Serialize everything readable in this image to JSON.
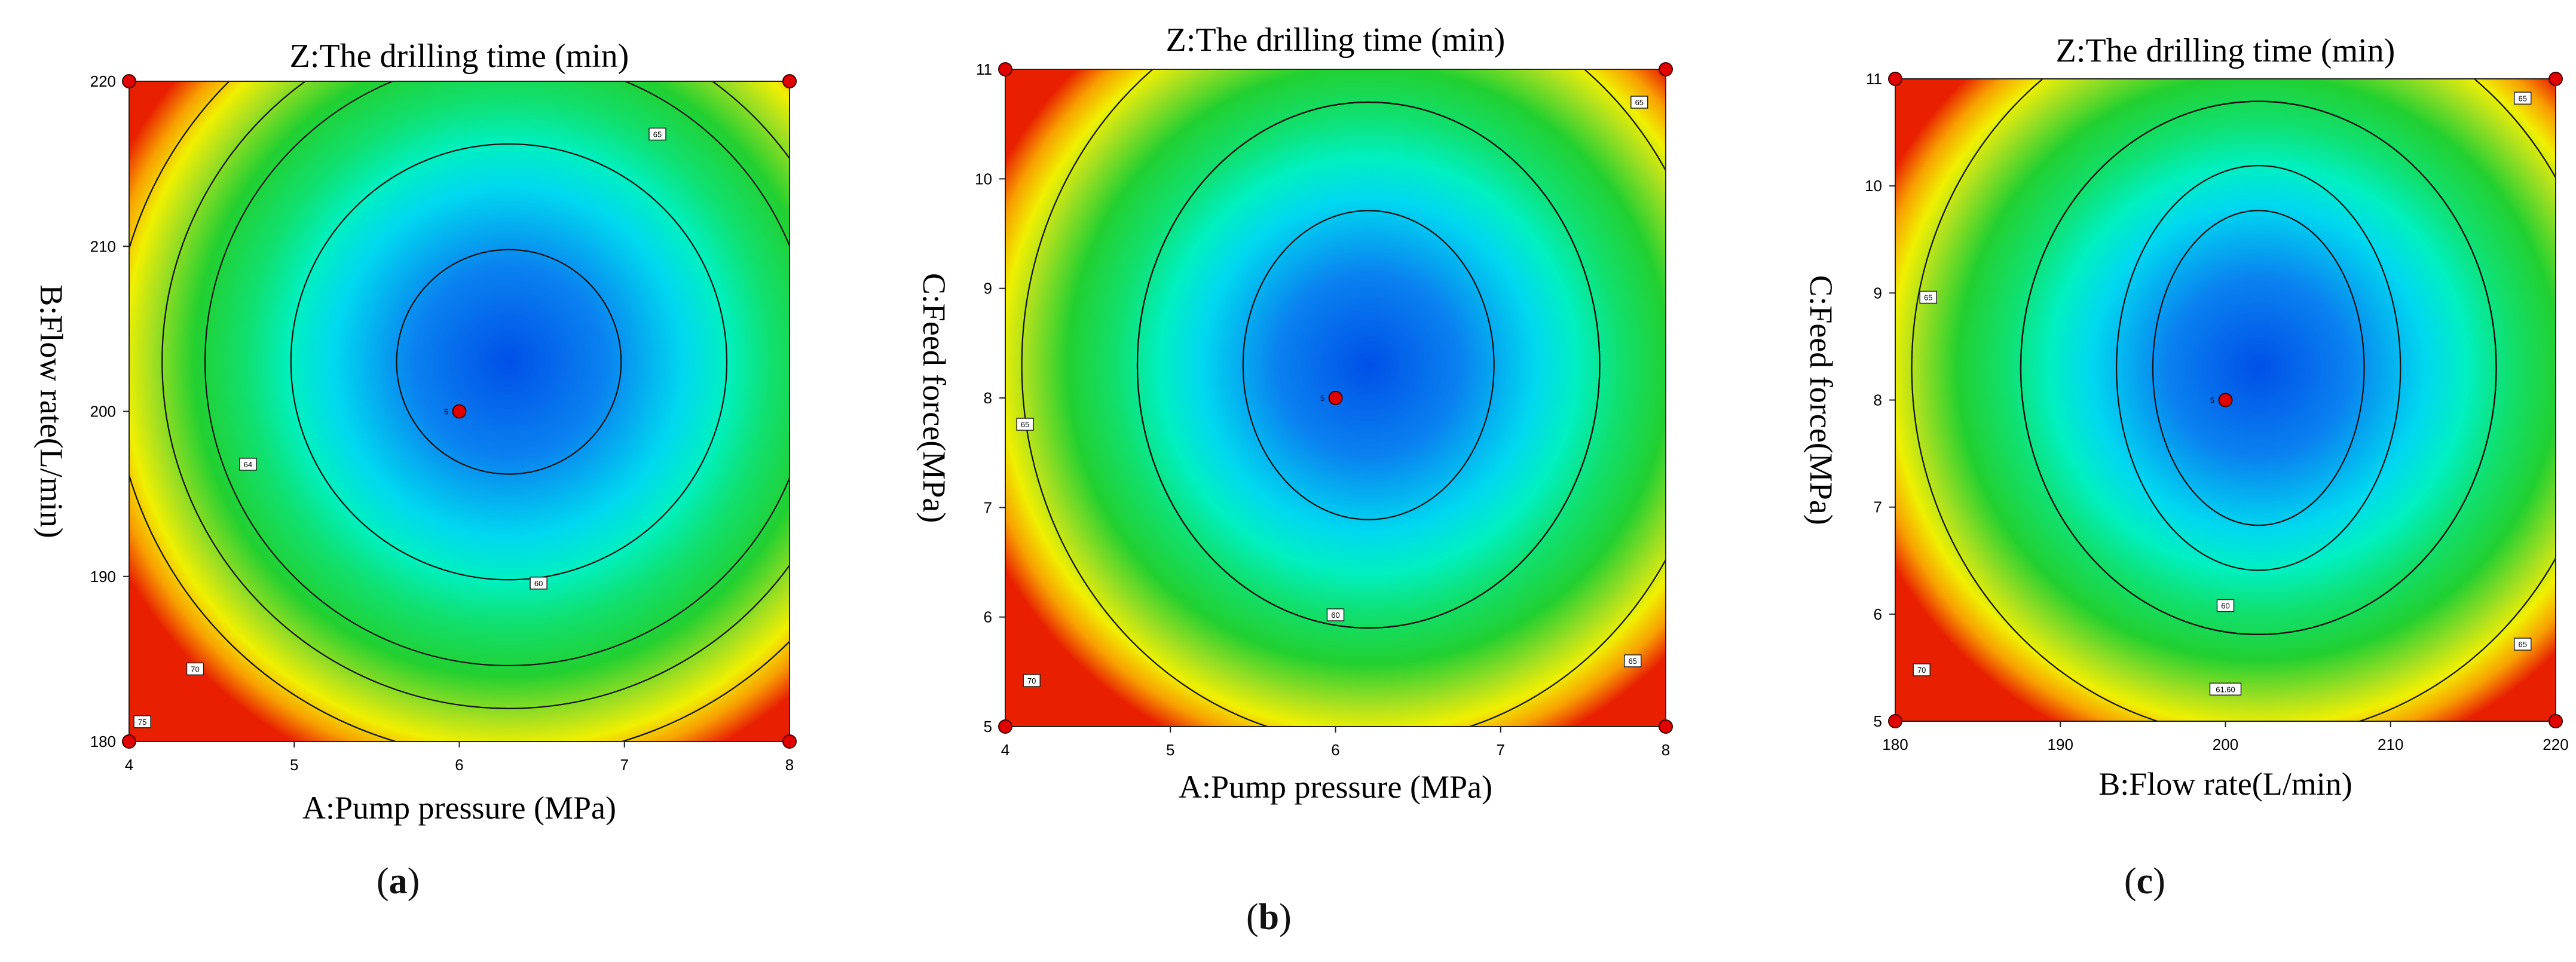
{
  "chart_data": [
    {
      "type": "contour",
      "title": "Z:The drilling time (min)",
      "xlabel": "A:Pump pressure (MPa)",
      "ylabel": "B:Flow rate(L/min)",
      "xlim": [
        4,
        8
      ],
      "ylim": [
        180,
        220
      ],
      "xticks": [
        "4",
        "5",
        "6",
        "7",
        "8"
      ],
      "yticks": [
        "180",
        "190",
        "200",
        "210",
        "220"
      ],
      "center": [
        6.3,
        203
      ],
      "design_points": [
        [
          4,
          180
        ],
        [
          4,
          220
        ],
        [
          8,
          180
        ],
        [
          8,
          220
        ],
        [
          6,
          200
        ]
      ],
      "center_point_label": "5",
      "contour_labels": [
        "60",
        "64",
        "65",
        "70",
        "75"
      ],
      "caption": "(a)",
      "caption_letter": "a"
    },
    {
      "type": "contour",
      "title": "Z:The drilling time (min)",
      "xlabel": "A:Pump pressure (MPa)",
      "ylabel": "C:Feed force(MPa)",
      "xlim": [
        4,
        8
      ],
      "ylim": [
        5,
        11
      ],
      "xticks": [
        "4",
        "5",
        "6",
        "7",
        "8"
      ],
      "yticks": [
        "5",
        "6",
        "7",
        "8",
        "9",
        "10",
        "11"
      ],
      "center": [
        6.2,
        8.3
      ],
      "design_points": [
        [
          4,
          5
        ],
        [
          4,
          11
        ],
        [
          8,
          5
        ],
        [
          8,
          11
        ],
        [
          6,
          8
        ]
      ],
      "center_point_label": "5",
      "contour_labels": [
        "60",
        "65",
        "65",
        "65",
        "70"
      ],
      "caption": "(b)",
      "caption_letter": "b"
    },
    {
      "type": "contour",
      "title": "Z:The drilling time (min)",
      "xlabel": "B:Flow rate(L/min)",
      "ylabel": "C:Feed force(MPa)",
      "xlim": [
        180,
        220
      ],
      "ylim": [
        5,
        11
      ],
      "xticks": [
        "180",
        "190",
        "200",
        "210",
        "220"
      ],
      "yticks": [
        "5",
        "6",
        "7",
        "8",
        "9",
        "10",
        "11"
      ],
      "center": [
        202,
        8.3
      ],
      "design_points": [
        [
          180,
          5
        ],
        [
          180,
          11
        ],
        [
          220,
          5
        ],
        [
          220,
          11
        ],
        [
          200,
          8
        ]
      ],
      "center_point_label": "5",
      "contour_labels": [
        "60",
        "61.60",
        "65",
        "65",
        "65",
        "70"
      ],
      "caption": "(c)",
      "caption_letter": "c"
    }
  ]
}
